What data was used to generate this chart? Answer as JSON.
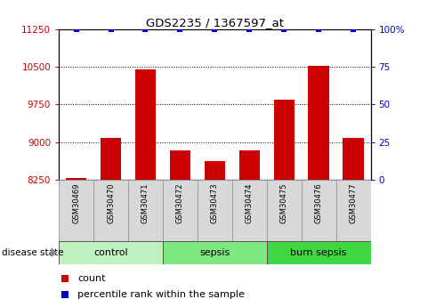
{
  "title": "GDS2235 / 1367597_at",
  "samples": [
    "GSM30469",
    "GSM30470",
    "GSM30471",
    "GSM30472",
    "GSM30473",
    "GSM30474",
    "GSM30475",
    "GSM30476",
    "GSM30477"
  ],
  "counts": [
    8280,
    9080,
    10440,
    8840,
    8620,
    8840,
    9840,
    10520,
    9080
  ],
  "percentiles": [
    100,
    100,
    100,
    100,
    100,
    100,
    100,
    100,
    100
  ],
  "ylim_left": [
    8250,
    11250
  ],
  "ylim_right": [
    0,
    100
  ],
  "yticks_left": [
    8250,
    9000,
    9750,
    10500,
    11250
  ],
  "yticks_right": [
    0,
    25,
    50,
    75,
    100
  ],
  "groups": [
    {
      "label": "control",
      "indices": [
        0,
        1,
        2
      ],
      "color": "#c0f0c0"
    },
    {
      "label": "sepsis",
      "indices": [
        3,
        4,
        5
      ],
      "color": "#80e880"
    },
    {
      "label": "burn sepsis",
      "indices": [
        6,
        7,
        8
      ],
      "color": "#40d840"
    }
  ],
  "bar_color": "#cc0000",
  "dot_color": "#0000cc",
  "bar_width": 0.6,
  "disease_state_label": "disease state",
  "legend_count_label": "count",
  "legend_pct_label": "percentile rank within the sample",
  "sample_box_color": "#d8d8d8",
  "sample_box_edge": "#999999",
  "grid_color": "#000000",
  "spine_color": "#000000"
}
